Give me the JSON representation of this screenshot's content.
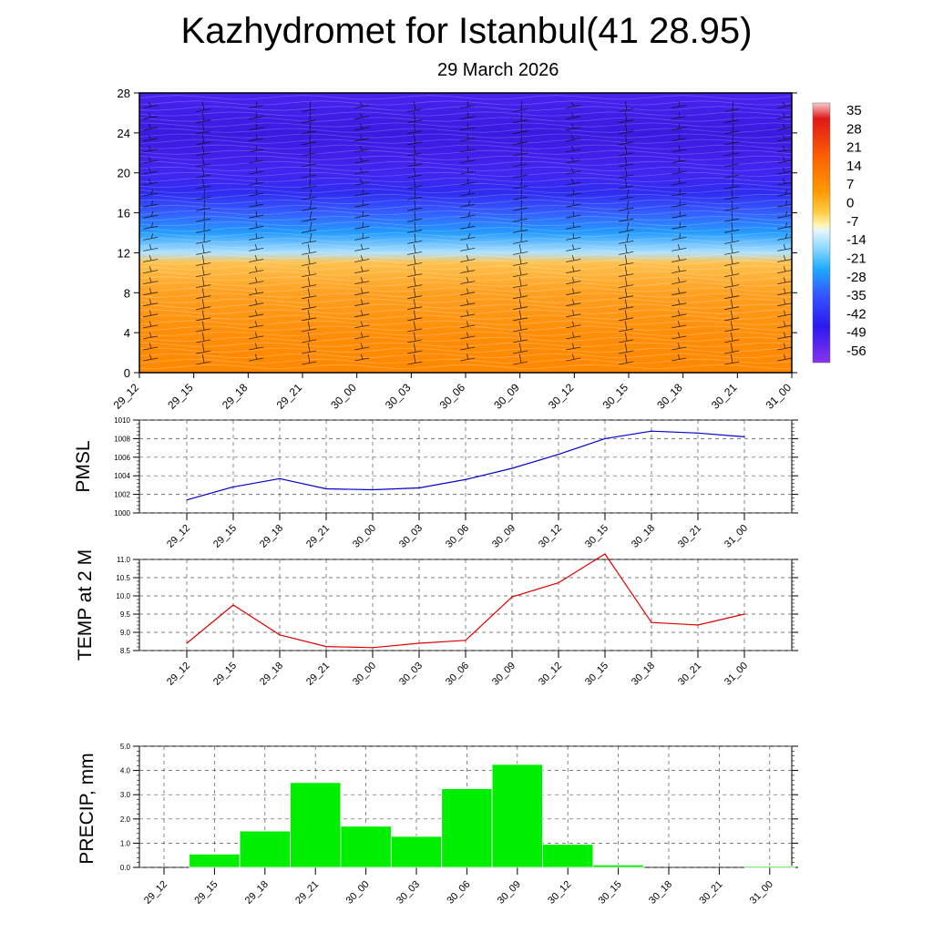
{
  "header": {
    "title": "Kazhydromet for Istanbul(41 28.95)",
    "date": "29 March 2026"
  },
  "time_labels": [
    "29_12",
    "29_15",
    "29_18",
    "29_21",
    "30_00",
    "30_03",
    "30_06",
    "30_09",
    "30_12",
    "30_15",
    "30_18",
    "30_21",
    "31_00"
  ],
  "chart_data": [
    {
      "type": "heatmap",
      "ylim": [
        0,
        28
      ],
      "y_ticks": [
        "0",
        "4",
        "8",
        "12",
        "16",
        "20",
        "24",
        "28"
      ],
      "x": [
        "29_12",
        "29_15",
        "29_18",
        "29_21",
        "30_00",
        "30_03",
        "30_06",
        "30_09",
        "30_12",
        "30_15",
        "30_18",
        "30_21",
        "31_00"
      ],
      "colorbar_labels": [
        "35",
        "28",
        "21",
        "14",
        "7",
        "0",
        "-7",
        "-14",
        "-21",
        "-28",
        "-35",
        "-42",
        "-49",
        "-56"
      ],
      "temperature_profile": {
        "levels": [
          0,
          4,
          8,
          11,
          12,
          14,
          16,
          18,
          20,
          22,
          24,
          26,
          28
        ],
        "values": [
          10,
          8,
          2,
          -6,
          -18,
          -32,
          -42,
          -50,
          -54,
          -58,
          -60,
          -58,
          -56
        ]
      },
      "wind_barbs": true
    },
    {
      "type": "line",
      "ylabel": "PMSL",
      "ylim": [
        1000,
        1010
      ],
      "y_ticks": [
        "1000",
        "1002",
        "1004",
        "1006",
        "1008",
        "1010"
      ],
      "x": [
        "29_12",
        "29_15",
        "29_18",
        "29_21",
        "30_00",
        "30_03",
        "30_06",
        "30_09",
        "30_12",
        "30_15",
        "30_18",
        "30_21",
        "31_00"
      ],
      "series": [
        {
          "values": [
            1001.4,
            1002.8,
            1003.7,
            1002.6,
            1002.5,
            1002.7,
            1003.6,
            1004.8,
            1006.3,
            1008.0,
            1008.8,
            1008.6,
            1008.2
          ],
          "color": "#0000cc"
        }
      ],
      "grid": true
    },
    {
      "type": "line",
      "ylabel": "TEMP at 2 M",
      "ylim": [
        8.5,
        11.0
      ],
      "y_ticks": [
        "8.5",
        "9.0",
        "9.5",
        "10.0",
        "10.5",
        "11.0"
      ],
      "x": [
        "29_12",
        "29_15",
        "29_18",
        "29_21",
        "30_00",
        "30_03",
        "30_06",
        "30_09",
        "30_12",
        "30_15",
        "30_18",
        "30_21",
        "31_00"
      ],
      "series": [
        {
          "values": [
            8.7,
            9.75,
            8.93,
            8.61,
            8.58,
            8.7,
            8.78,
            9.97,
            10.36,
            11.15,
            9.27,
            9.2,
            9.5
          ],
          "color": "#dd0000"
        }
      ],
      "grid": true
    },
    {
      "type": "bar",
      "ylabel": "PRECIP, mm",
      "ylim": [
        0,
        5.0
      ],
      "y_ticks": [
        "0.0",
        "1.0",
        "2.0",
        "3.0",
        "4.0",
        "5.0"
      ],
      "categories": [
        "29_12",
        "29_15",
        "29_18",
        "29_21",
        "30_00",
        "30_03",
        "30_06",
        "30_09",
        "30_12",
        "30_15",
        "30_18",
        "30_21",
        "31_00"
      ],
      "values": [
        0,
        0.55,
        1.5,
        3.5,
        1.7,
        1.28,
        3.25,
        4.25,
        0.95,
        0.1,
        0,
        0,
        0.05
      ],
      "color": "#00ee00",
      "grid": true
    }
  ]
}
